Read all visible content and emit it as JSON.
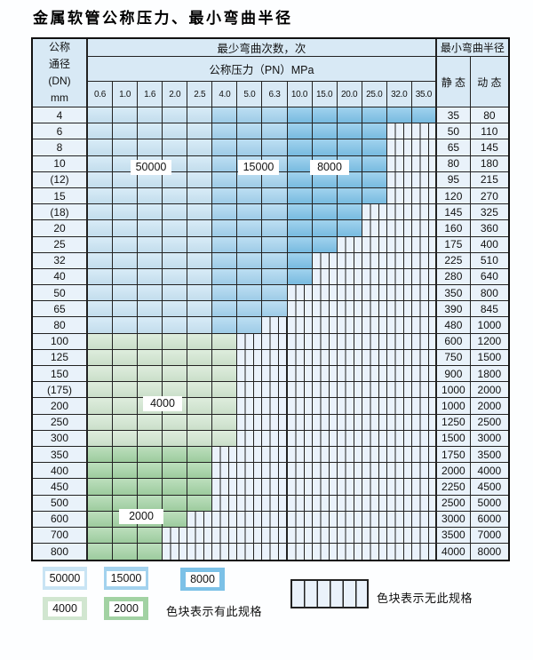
{
  "title": "金属软管公称压力、最小弯曲半径",
  "header": {
    "dn_lines": [
      "公称",
      "通径",
      "(DN)",
      "mm"
    ],
    "cycles": "最少弯曲次数，次",
    "radius": "最小弯曲半径",
    "pn": "公称压力（PN）MPa",
    "static": "静 态",
    "dynamic": "动 态"
  },
  "pressures": [
    "0.6",
    "1.0",
    "1.6",
    "2.0",
    "2.5",
    "4.0",
    "5.0",
    "6.3",
    "10.0",
    "15.0",
    "20.0",
    "25.0",
    "32.0",
    "35.0"
  ],
  "rows": [
    {
      "dn": "4",
      "max": 13,
      "band": "blue",
      "s": "35",
      "d": "80"
    },
    {
      "dn": "6",
      "max": 11,
      "band": "blue",
      "s": "50",
      "d": "110"
    },
    {
      "dn": "8",
      "max": 11,
      "band": "blue",
      "s": "65",
      "d": "145"
    },
    {
      "dn": "10",
      "max": 11,
      "band": "blue",
      "s": "80",
      "d": "180"
    },
    {
      "dn": "(12)",
      "max": 11,
      "band": "blue",
      "s": "95",
      "d": "215"
    },
    {
      "dn": "15",
      "max": 11,
      "band": "blue",
      "s": "120",
      "d": "270"
    },
    {
      "dn": "(18)",
      "max": 10,
      "band": "blue",
      "s": "145",
      "d": "325"
    },
    {
      "dn": "20",
      "max": 10,
      "band": "blue",
      "s": "160",
      "d": "360"
    },
    {
      "dn": "25",
      "max": 9,
      "band": "blue",
      "s": "175",
      "d": "400"
    },
    {
      "dn": "32",
      "max": 8,
      "band": "blue",
      "s": "225",
      "d": "510"
    },
    {
      "dn": "40",
      "max": 8,
      "band": "blue",
      "s": "280",
      "d": "640"
    },
    {
      "dn": "50",
      "max": 7,
      "band": "blue",
      "s": "350",
      "d": "800"
    },
    {
      "dn": "65",
      "max": 7,
      "band": "blue",
      "s": "390",
      "d": "845"
    },
    {
      "dn": "80",
      "max": 6,
      "band": "blue",
      "s": "480",
      "d": "1000"
    },
    {
      "dn": "100",
      "max": 5,
      "band": "gl",
      "s": "600",
      "d": "1200"
    },
    {
      "dn": "125",
      "max": 5,
      "band": "gl",
      "s": "750",
      "d": "1500"
    },
    {
      "dn": "150",
      "max": 5,
      "band": "gl",
      "s": "900",
      "d": "1800"
    },
    {
      "dn": "(175)",
      "max": 5,
      "band": "gl",
      "s": "1000",
      "d": "2000"
    },
    {
      "dn": "200",
      "max": 5,
      "band": "gl",
      "s": "1000",
      "d": "2000"
    },
    {
      "dn": "250",
      "max": 5,
      "band": "gl",
      "s": "1250",
      "d": "2500"
    },
    {
      "dn": "300",
      "max": 5,
      "band": "gl",
      "s": "1500",
      "d": "3000"
    },
    {
      "dn": "350",
      "max": 4,
      "band": "gd",
      "s": "1750",
      "d": "3500"
    },
    {
      "dn": "400",
      "max": 4,
      "band": "gd",
      "s": "2000",
      "d": "4000"
    },
    {
      "dn": "450",
      "max": 4,
      "band": "gd",
      "s": "2250",
      "d": "4500"
    },
    {
      "dn": "500",
      "max": 4,
      "band": "gd",
      "s": "2500",
      "d": "5000"
    },
    {
      "dn": "600",
      "max": 3,
      "band": "gd",
      "s": "3000",
      "d": "6000"
    },
    {
      "dn": "700",
      "max": 2,
      "band": "gd",
      "s": "3500",
      "d": "7000"
    },
    {
      "dn": "800",
      "max": 2,
      "band": "gd",
      "s": "4000",
      "d": "8000"
    }
  ],
  "zone_labels": {
    "l50000": "50000",
    "l15000": "15000",
    "l8000": "8000",
    "l4000": "4000",
    "l2000": "2000"
  },
  "legend": {
    "items": [
      {
        "label": "50000",
        "color": "blue_light"
      },
      {
        "label": "15000",
        "color": "blue_mid"
      },
      {
        "label": "8000",
        "color": "blue_dark"
      },
      {
        "label": "4000",
        "color": "green_light"
      },
      {
        "label": "2000",
        "color": "green_dark"
      }
    ],
    "has_spec": "色块表示有此规格",
    "no_spec": "色块表示无此规格"
  },
  "colors": {
    "blue_light": "#c9e4f4",
    "blue_mid": "#a3d2ee",
    "blue_dark": "#7cc1e7",
    "green_light": "#d1e6d0",
    "green_dark": "#a2d2a3",
    "hatch_bg": "#eaf2fb",
    "header_bg": "#d8e9f5",
    "label_bg": "#e9f2fa",
    "grid_line": "#222222"
  }
}
